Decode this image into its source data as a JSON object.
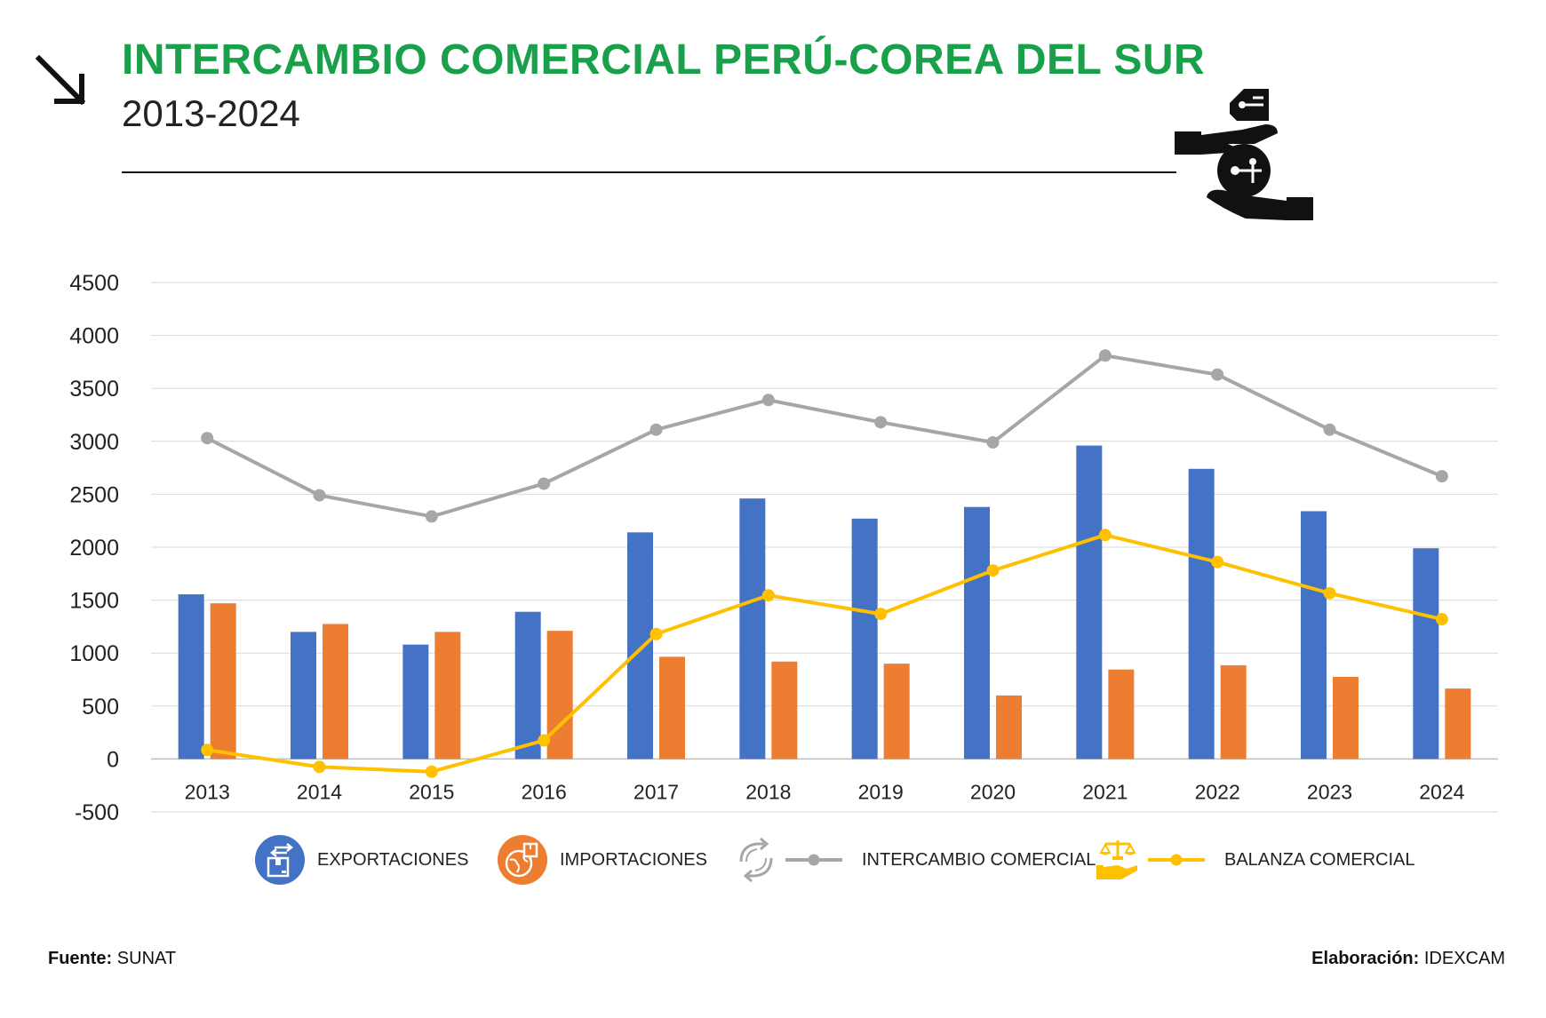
{
  "header": {
    "title": "INTERCAMBIO COMERCIAL PERÚ-COREA DEL SUR",
    "subtitle": "2013-2024"
  },
  "colors": {
    "title": "#1aa04b",
    "exports": "#4472c4",
    "imports": "#ed7d31",
    "trade": "#a6a6a6",
    "balance": "#ffc000",
    "grid": "#d9d9d9"
  },
  "icons": {
    "header_arrow": "arrow-down-right-icon",
    "header_graphic": "hands-exchange-icon",
    "exports": "shipping-box-icon",
    "imports": "globe-box-icon",
    "trade": "refresh-arrows-icon",
    "balance": "scale-hand-icon"
  },
  "chart_data": {
    "type": "bar",
    "categories": [
      "2013",
      "2014",
      "2015",
      "2016",
      "2017",
      "2018",
      "2019",
      "2020",
      "2021",
      "2022",
      "2023",
      "2024"
    ],
    "ylim": [
      -500,
      4500
    ],
    "yticks": [
      "-500",
      "0",
      "500",
      "1000",
      "1500",
      "2000",
      "2500",
      "3000",
      "3500",
      "4000",
      "4500"
    ],
    "grid": true,
    "legend_position": "bottom",
    "series": [
      {
        "name": "EXPORTACIONES",
        "type": "bar",
        "values": [
          1555,
          1200,
          1080,
          1390,
          2140,
          2460,
          2270,
          2380,
          2960,
          2740,
          2340,
          1990
        ]
      },
      {
        "name": "IMPORTACIONES",
        "type": "bar",
        "values": [
          1470,
          1275,
          1200,
          1210,
          965,
          920,
          900,
          600,
          845,
          885,
          775,
          665
        ]
      },
      {
        "name": "INTERCAMBIO COMERCIAL",
        "type": "line",
        "values": [
          3030,
          2490,
          2290,
          2600,
          3110,
          3390,
          3180,
          2990,
          3810,
          3630,
          3110,
          2670
        ]
      },
      {
        "name": "BALANZA COMERCIAL",
        "type": "line",
        "values": [
          85,
          -75,
          -120,
          175,
          1180,
          1545,
          1370,
          1780,
          2115,
          1860,
          1565,
          1320
        ]
      }
    ]
  },
  "footer": {
    "source_label": "Fuente:",
    "source_value": "SUNAT",
    "credit_label": "Elaboración:",
    "credit_value": "IDEXCAM"
  }
}
